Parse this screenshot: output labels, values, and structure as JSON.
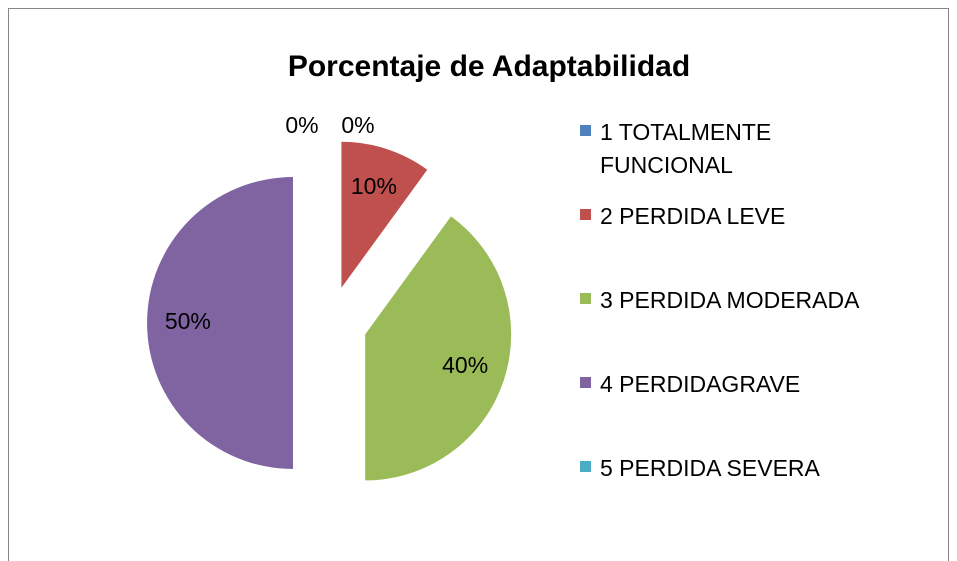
{
  "chart_data": {
    "type": "pie",
    "title": "Porcentaje  de Adaptabilidad",
    "categories": [
      "1 TOTALMENTE FUNCIONAL",
      "2 PERDIDA LEVE",
      "3 PERDIDA MODERADA",
      "4 PERDIDAGRAVE",
      "5 PERDIDA SEVERA"
    ],
    "values": [
      0,
      10,
      40,
      50,
      0
    ],
    "value_labels": [
      "0%",
      "10%",
      "40%",
      "50%",
      "0%"
    ],
    "colors": [
      "#4f81bd",
      "#c0504d",
      "#9bbb59",
      "#8064a2",
      "#4bacc6"
    ],
    "legend": "right"
  }
}
